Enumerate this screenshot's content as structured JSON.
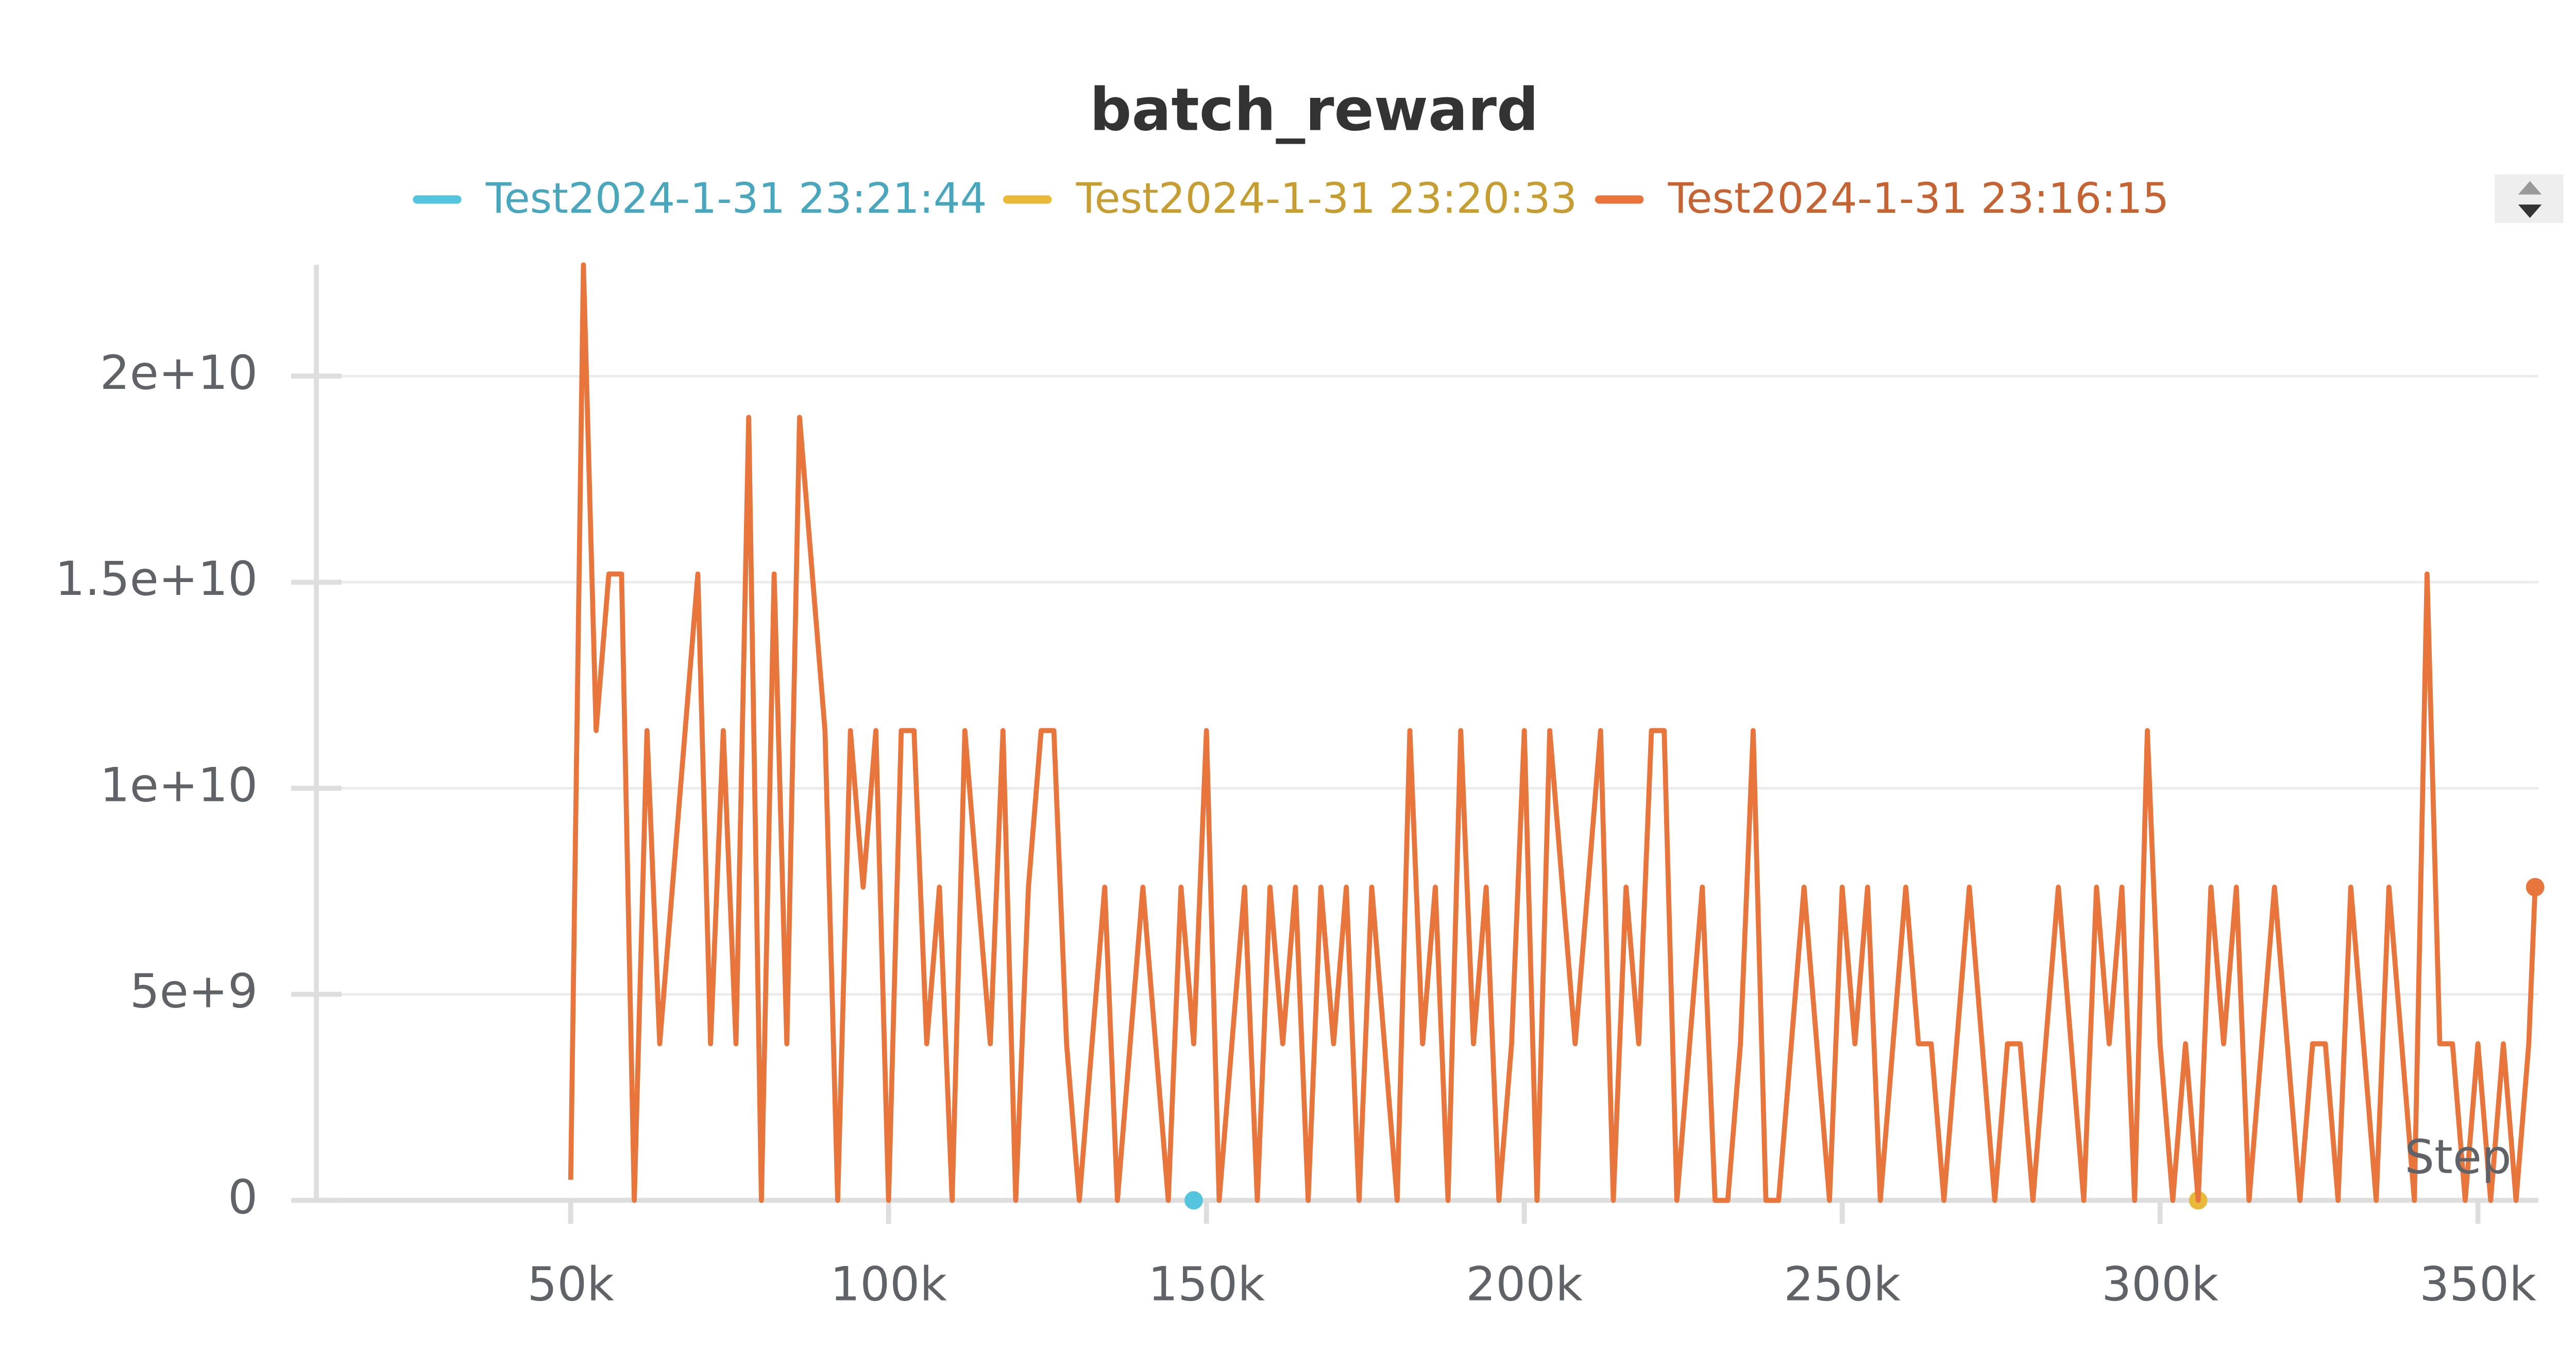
{
  "chart_data": {
    "type": "line",
    "title": "batch_reward",
    "x_label": "Step",
    "xlim": [
      10000,
      359500
    ],
    "ylim": [
      0,
      22700000000
    ],
    "xticks": [
      {
        "value": 50000,
        "label": "50k"
      },
      {
        "value": 100000,
        "label": "100k"
      },
      {
        "value": 150000,
        "label": "150k"
      },
      {
        "value": 200000,
        "label": "200k"
      },
      {
        "value": 250000,
        "label": "250k"
      },
      {
        "value": 300000,
        "label": "300k"
      },
      {
        "value": 350000,
        "label": "350k"
      }
    ],
    "yticks": [
      0,
      {
        "value": 5000000000,
        "label": "5e+9"
      },
      {
        "value": 10000000000,
        "label": "1e+10"
      },
      {
        "value": 15000000000,
        "label": "1.5e+10"
      },
      {
        "value": 20000000000,
        "label": "2e+10"
      }
    ],
    "grid": true,
    "series": [
      {
        "name": "Test2024-1-31 23:21:44",
        "color": "#55c4de",
        "x": [
          148000
        ],
        "values": [
          0
        ]
      },
      {
        "name": "Test2024-1-31 23:20:33",
        "color": "#e9b93a",
        "x": [
          306000
        ],
        "values": [
          0
        ]
      },
      {
        "name": "Test2024-1-31 23:16:15",
        "color": "#e8753b",
        "x": [
          50000,
          52000,
          54000,
          56000,
          58000,
          60000,
          62000,
          64000,
          66000,
          68000,
          70000,
          72000,
          74000,
          76000,
          78000,
          80000,
          82000,
          84000,
          86000,
          88000,
          90000,
          92000,
          94000,
          96000,
          98000,
          100000,
          102000,
          104000,
          106000,
          108000,
          110000,
          112000,
          114000,
          116000,
          118000,
          120000,
          122000,
          124000,
          126000,
          128000,
          130000,
          132000,
          134000,
          136000,
          138000,
          140000,
          142000,
          144000,
          146000,
          148000,
          150000,
          152000,
          154000,
          156000,
          158000,
          160000,
          162000,
          164000,
          166000,
          168000,
          170000,
          172000,
          174000,
          176000,
          178000,
          180000,
          182000,
          184000,
          186000,
          188000,
          190000,
          192000,
          194000,
          196000,
          198000,
          200000,
          202000,
          204000,
          206000,
          208000,
          210000,
          212000,
          214000,
          216000,
          218000,
          220000,
          222000,
          224000,
          226000,
          228000,
          230000,
          232000,
          234000,
          236000,
          238000,
          240000,
          242000,
          244000,
          246000,
          248000,
          250000,
          252000,
          254000,
          256000,
          258000,
          260000,
          262000,
          264000,
          266000,
          268000,
          270000,
          272000,
          274000,
          276000,
          278000,
          280000,
          282000,
          284000,
          286000,
          288000,
          290000,
          292000,
          294000,
          296000,
          298000,
          300000,
          302000,
          304000,
          306000,
          308000,
          310000,
          312000,
          314000,
          316000,
          318000,
          320000,
          322000,
          324000,
          326000,
          328000,
          330000,
          332000,
          334000,
          336000,
          338000,
          340000,
          342000,
          344000,
          346000,
          348000,
          350000,
          352000,
          354000,
          356000,
          358000,
          359000
        ],
        "values": [
          500000000.0,
          22700000000.0,
          11400000000.0,
          15200000000.0,
          15200000000.0,
          0,
          11400000000.0,
          3800000000.0,
          7600000000.0,
          11400000000.0,
          15200000000.0,
          3800000000.0,
          11400000000.0,
          3800000000.0,
          19000000000.0,
          0,
          15200000000.0,
          3800000000.0,
          19000000000.0,
          15200000000.0,
          11400000000.0,
          0,
          11400000000.0,
          7600000000.0,
          11400000000.0,
          0,
          11400000000.0,
          11400000000.0,
          3800000000.0,
          7600000000.0,
          0,
          11400000000.0,
          7600000000.0,
          3800000000.0,
          11400000000.0,
          0,
          7600000000.0,
          11400000000.0,
          11400000000.0,
          3800000000.0,
          0,
          3800000000.0,
          7600000000.0,
          0,
          3800000000.0,
          7600000000.0,
          3800000000.0,
          0,
          7600000000.0,
          3800000000.0,
          11400000000.0,
          0,
          3800000000.0,
          7600000000.0,
          0,
          7600000000.0,
          3800000000.0,
          7600000000.0,
          0,
          7600000000.0,
          3800000000.0,
          7600000000.0,
          0,
          7600000000.0,
          3800000000.0,
          0,
          11400000000.0,
          3800000000.0,
          7600000000.0,
          0,
          11400000000.0,
          3800000000.0,
          7600000000.0,
          0,
          3800000000.0,
          11400000000.0,
          0,
          11400000000.0,
          7600000000.0,
          3800000000.0,
          7600000000.0,
          11400000000.0,
          0,
          7600000000.0,
          3800000000.0,
          11400000000.0,
          11400000000.0,
          0,
          3800000000.0,
          7600000000.0,
          0,
          0,
          3800000000.0,
          11400000000.0,
          0,
          0,
          3800000000.0,
          7600000000.0,
          3800000000.0,
          0,
          7600000000.0,
          3800000000.0,
          7600000000.0,
          0,
          3800000000.0,
          7600000000.0,
          3800000000.0,
          3800000000.0,
          0,
          3800000000.0,
          7600000000.0,
          3800000000.0,
          0,
          3800000000.0,
          3800000000.0,
          0,
          3800000000.0,
          7600000000.0,
          3800000000.0,
          0,
          7600000000.0,
          3800000000.0,
          7600000000.0,
          0,
          11400000000.0,
          3800000000.0,
          0,
          3800000000.0,
          0,
          7600000000.0,
          3800000000.0,
          7600000000.0,
          0,
          3800000000.0,
          7600000000.0,
          3800000000.0,
          0,
          3800000000.0,
          3800000000.0,
          0,
          7600000000.0,
          3800000000.0,
          0,
          7600000000.0,
          3800000000.0,
          0,
          15200000000.0,
          3800000000.0,
          3800000000.0,
          0,
          3800000000.0,
          0,
          3800000000.0,
          0,
          3800000000.0,
          7600000000.0
        ]
      }
    ]
  }
}
